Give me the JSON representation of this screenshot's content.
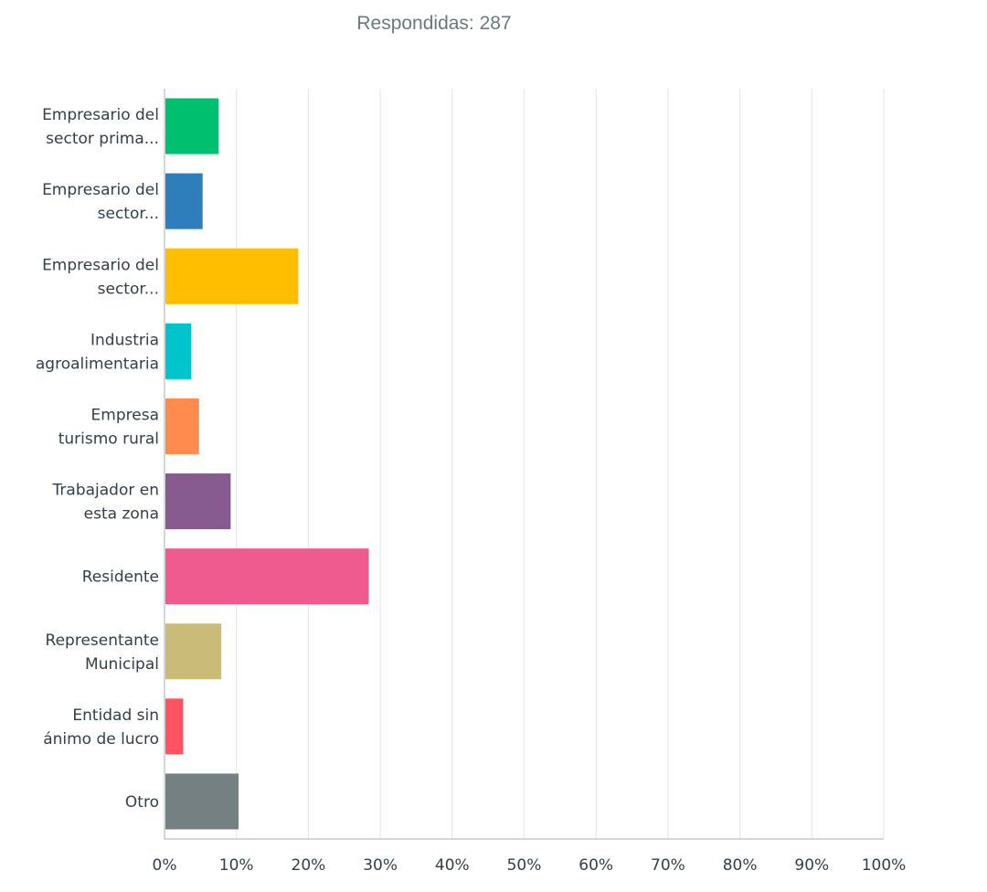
{
  "header": {
    "respondents_label": "Respondidas: 287"
  },
  "chart_data": {
    "type": "bar",
    "orientation": "horizontal",
    "xlim": [
      0,
      100
    ],
    "grid": true,
    "categories": [
      [
        "Empresario del",
        "sector prima..."
      ],
      [
        "Empresario del",
        "sector..."
      ],
      [
        "Empresario del",
        "sector..."
      ],
      [
        "Industria",
        "agroalimentaria"
      ],
      [
        "Empresa",
        "turismo rural"
      ],
      [
        "Trabajador en",
        "esta zona"
      ],
      [
        "Residente"
      ],
      [
        "Representante",
        "Municipal"
      ],
      [
        "Entidad sin",
        "ánimo de lucro"
      ],
      [
        "Otro"
      ]
    ],
    "values": [
      7.5,
      5.3,
      18.6,
      3.7,
      4.8,
      9.2,
      28.4,
      7.9,
      2.6,
      10.3
    ],
    "colors": [
      "#00bf6f",
      "#2e7ebc",
      "#ffbf00",
      "#00c4cc",
      "#ff8b4f",
      "#875b8f",
      "#f05b8f",
      "#cbbb78",
      "#ff5262",
      "#748082"
    ],
    "tick_labels": [
      "0%",
      "10%",
      "20%",
      "30%",
      "40%",
      "50%",
      "60%",
      "70%",
      "80%",
      "90%",
      "100%"
    ]
  }
}
